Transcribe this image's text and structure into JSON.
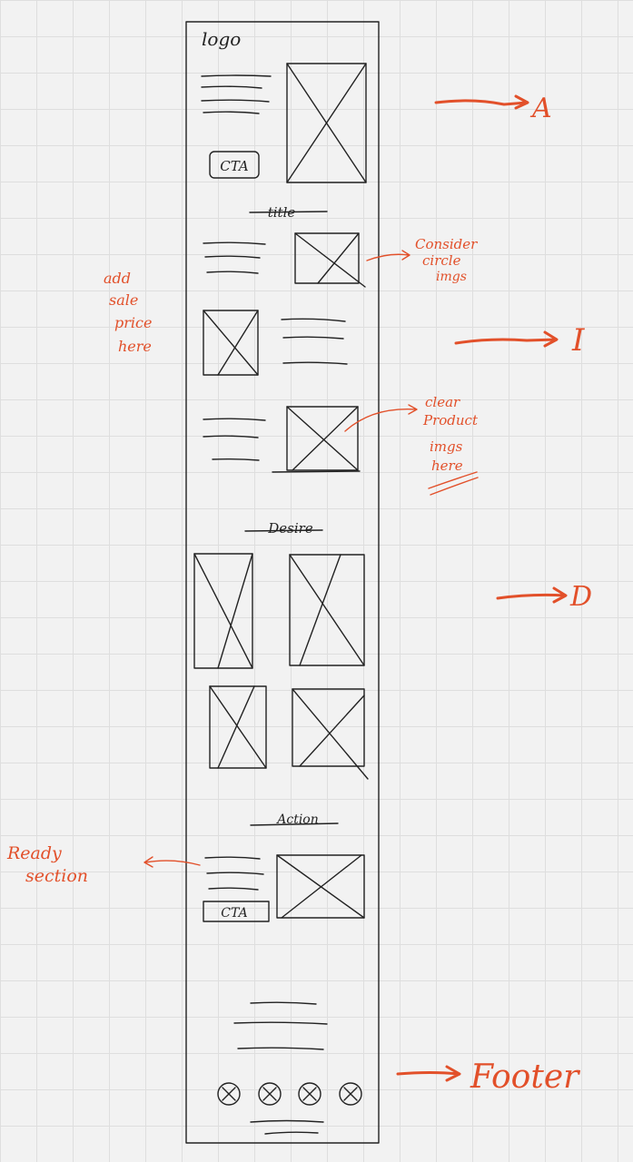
{
  "wireframe": {
    "logo": "logo",
    "hero_cta": "CTA",
    "interest_title": "title",
    "desire_title": "Desire",
    "action_title": "Action",
    "action_cta": "CTA"
  },
  "sections": {
    "attention": "A",
    "interest": "I",
    "desire": "D",
    "footer": "Footer"
  },
  "notes": {
    "circle_imgs": [
      "Consider",
      "circle",
      "imgs"
    ],
    "sale_price": [
      "add",
      "sale",
      "price",
      "here"
    ],
    "product_imgs": [
      "clear",
      "Product",
      "imgs",
      "here"
    ],
    "ready_section": [
      "Ready",
      "section"
    ]
  },
  "colors": {
    "annotation": "#e2502a",
    "ink": "#222222",
    "paper": "#f2f2f2"
  }
}
